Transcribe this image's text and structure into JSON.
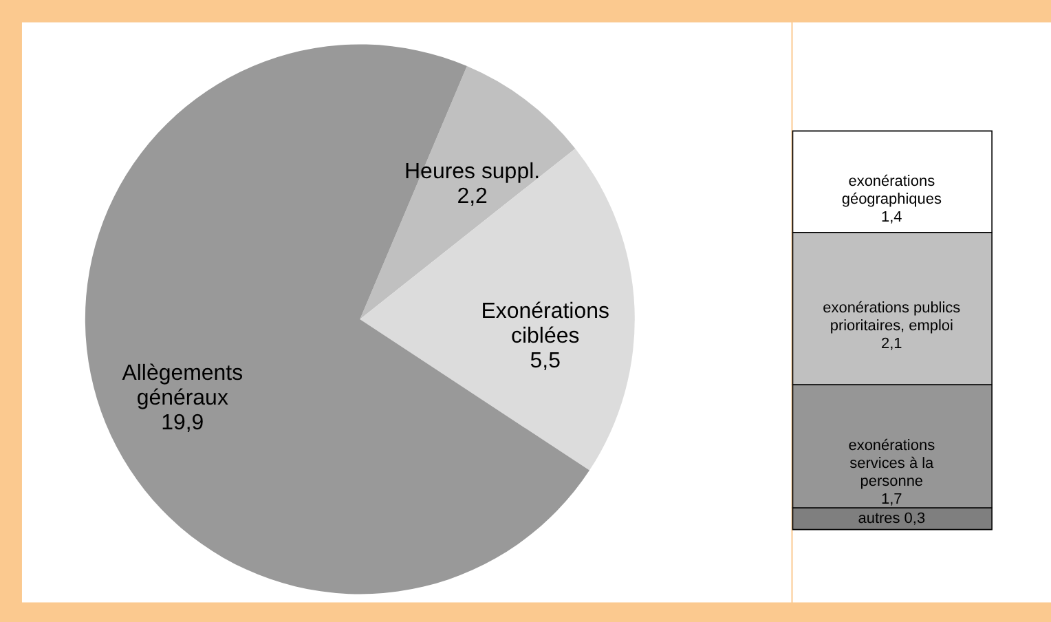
{
  "chart_data": [
    {
      "type": "pie",
      "categories": [
        "Heures suppl.",
        "Exonérations\nciblées",
        "Allègements\ngénéraux"
      ],
      "values": [
        2.2,
        5.5,
        19.9
      ],
      "value_labels": [
        "2,2",
        "5,5",
        "19,9"
      ],
      "colors": [
        "#c0c0c0",
        "#dcdcdc",
        "#999999"
      ]
    },
    {
      "type": "bar",
      "stacked": true,
      "categories": [
        null
      ],
      "series": [
        {
          "name": "autres",
          "color": "#7f7f7f",
          "values": [
            0.3
          ],
          "value_labels": [
            "0,3"
          ]
        },
        {
          "name": "exonérations\nservices à la\npersonne",
          "color": "#969696",
          "values": [
            1.7
          ],
          "value_labels": [
            "1,7"
          ]
        },
        {
          "name": "exonérations publics\nprioritaires, emploi",
          "color": "#c0c0c0",
          "values": [
            2.1
          ],
          "value_labels": [
            "2,1"
          ]
        },
        {
          "name": "exonérations\ngéographiques",
          "color": "#ffffff",
          "values": [
            1.4
          ],
          "value_labels": [
            "1,4"
          ]
        }
      ]
    }
  ]
}
